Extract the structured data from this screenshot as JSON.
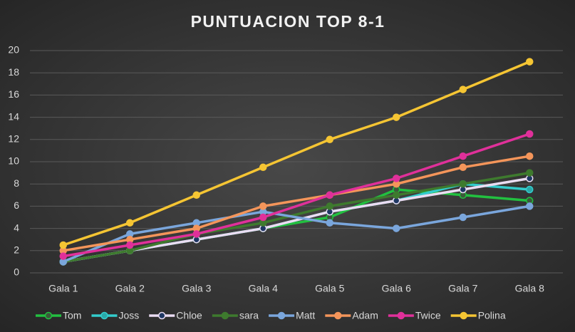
{
  "chart_data": {
    "type": "line",
    "title": "PUNTUACION TOP 8-1",
    "categories": [
      "Gala 1",
      "Gala 2",
      "Gala 3",
      "Gala 4",
      "Gala 5",
      "Gala 6",
      "Gala 7",
      "Gala 8"
    ],
    "series": [
      {
        "name": "Tom",
        "color": "#22c040",
        "marker": "#3a5a3a",
        "values": [
          1,
          2,
          3,
          4,
          5,
          7.5,
          7,
          6.5
        ]
      },
      {
        "name": "Joss",
        "color": "#33cccc",
        "marker": "#2aa8a8",
        "values": [
          1,
          2,
          3,
          4,
          5.5,
          6.5,
          8,
          7.5
        ]
      },
      {
        "name": "Chloe",
        "color": "#eadcf2",
        "marker": "#1f3864",
        "values": [
          1,
          2,
          3,
          4,
          5.5,
          6.5,
          7.5,
          8.5
        ]
      },
      {
        "name": "sara",
        "color": "#3e7a2e",
        "marker": "#3e7a2e",
        "values": [
          1,
          2,
          3.5,
          4.5,
          6,
          7,
          8,
          9
        ]
      },
      {
        "name": "Matt",
        "color": "#7aa6dc",
        "marker": "#7aa6dc",
        "values": [
          1,
          3.5,
          4.5,
          5.5,
          4.5,
          4,
          5,
          6
        ]
      },
      {
        "name": "Adam",
        "color": "#f4955a",
        "marker": "#f4955a",
        "values": [
          2,
          3,
          4,
          6,
          7,
          8,
          9.5,
          10.5
        ]
      },
      {
        "name": "Twice",
        "color": "#e0309a",
        "marker": "#e0309a",
        "values": [
          1.5,
          2.5,
          3.5,
          5,
          7,
          8.5,
          10.5,
          12.5
        ]
      },
      {
        "name": "Polina",
        "color": "#f5c533",
        "marker": "#f5c533",
        "values": [
          2.5,
          4.5,
          7,
          9.5,
          12,
          14,
          16.5,
          19
        ]
      }
    ],
    "ylim": [
      0,
      20
    ],
    "yticks": [
      0,
      2,
      4,
      6,
      8,
      10,
      12,
      14,
      16,
      18,
      20
    ],
    "grid": true,
    "legend": "bottom"
  }
}
